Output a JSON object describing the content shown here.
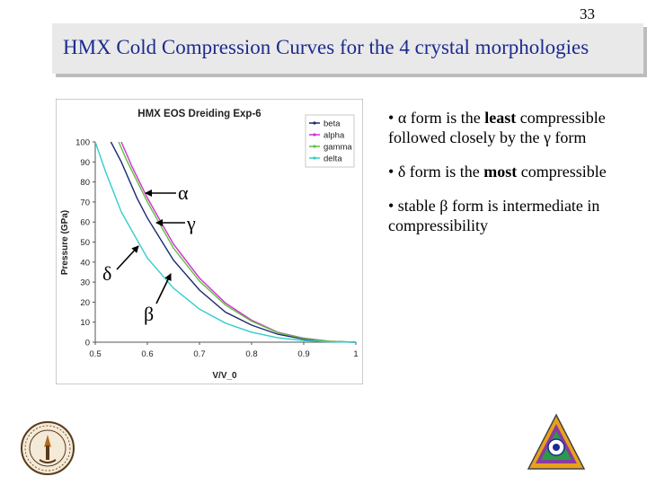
{
  "slide": {
    "page_number": "33",
    "title": "HMX Cold Compression Curves for the 4 crystal morphologies"
  },
  "bullets": [
    {
      "parts": [
        "• ",
        "α",
        " form is the ",
        "least",
        " compressible followed closely by the ",
        "γ",
        " form"
      ]
    },
    {
      "parts": [
        "• ",
        "δ",
        " form is the ",
        "most",
        " compressible"
      ]
    },
    {
      "parts": [
        "• stable ",
        "β",
        " form is intermediate in compressibility"
      ]
    }
  ],
  "annotations": {
    "alpha": "α",
    "gamma": "γ",
    "delta": "δ",
    "beta": "β"
  },
  "colors": {
    "title_text": "#1c2b8f",
    "title_bar": "#e9e9e9",
    "beta": "#1a2a6c",
    "alpha": "#cc33cc",
    "gamma": "#66bb44",
    "delta": "#33cccc"
  },
  "chart_data": {
    "type": "line",
    "title": "HMX EOS Dreiding Exp-6",
    "xlabel": "V/V_0",
    "ylabel": "Pressure (GPa)",
    "xlim": [
      0.5,
      1.0
    ],
    "ylim": [
      0,
      100
    ],
    "xticks": [
      "0.5",
      "0.6",
      "0.7",
      "0.8",
      "0.9",
      "1"
    ],
    "yticks": [
      "0",
      "10",
      "20",
      "30",
      "40",
      "50",
      "60",
      "70",
      "80",
      "90",
      "100"
    ],
    "grid": false,
    "legend_position": "top-right",
    "series": [
      {
        "name": "beta",
        "color": "#1a2a6c",
        "x": [
          0.53,
          0.55,
          0.58,
          0.6,
          0.65,
          0.7,
          0.75,
          0.8,
          0.85,
          0.9,
          0.95,
          1.0
        ],
        "values": [
          100,
          90,
          72,
          62,
          41,
          26,
          15,
          8.5,
          4,
          1.5,
          0.3,
          0
        ]
      },
      {
        "name": "alpha",
        "color": "#cc33cc",
        "x": [
          0.55,
          0.57,
          0.6,
          0.65,
          0.7,
          0.75,
          0.8,
          0.85,
          0.9,
          0.95,
          1.0
        ],
        "values": [
          100,
          88,
          72,
          49,
          32,
          19.5,
          11,
          5,
          2,
          0.5,
          0
        ]
      },
      {
        "name": "gamma",
        "color": "#66bb44",
        "x": [
          0.545,
          0.56,
          0.6,
          0.65,
          0.7,
          0.75,
          0.8,
          0.85,
          0.9,
          0.95,
          1.0
        ],
        "values": [
          100,
          91,
          70,
          47,
          30.5,
          18.5,
          10.5,
          4.8,
          1.9,
          0.5,
          0
        ]
      },
      {
        "name": "delta",
        "color": "#33cccc",
        "x": [
          0.5,
          0.52,
          0.55,
          0.6,
          0.65,
          0.7,
          0.75,
          0.8,
          0.85,
          0.9,
          0.95,
          1.0
        ],
        "values": [
          100,
          85,
          65,
          42,
          27,
          16.5,
          9.5,
          5,
          2.2,
          0.8,
          0.2,
          0
        ]
      }
    ]
  }
}
